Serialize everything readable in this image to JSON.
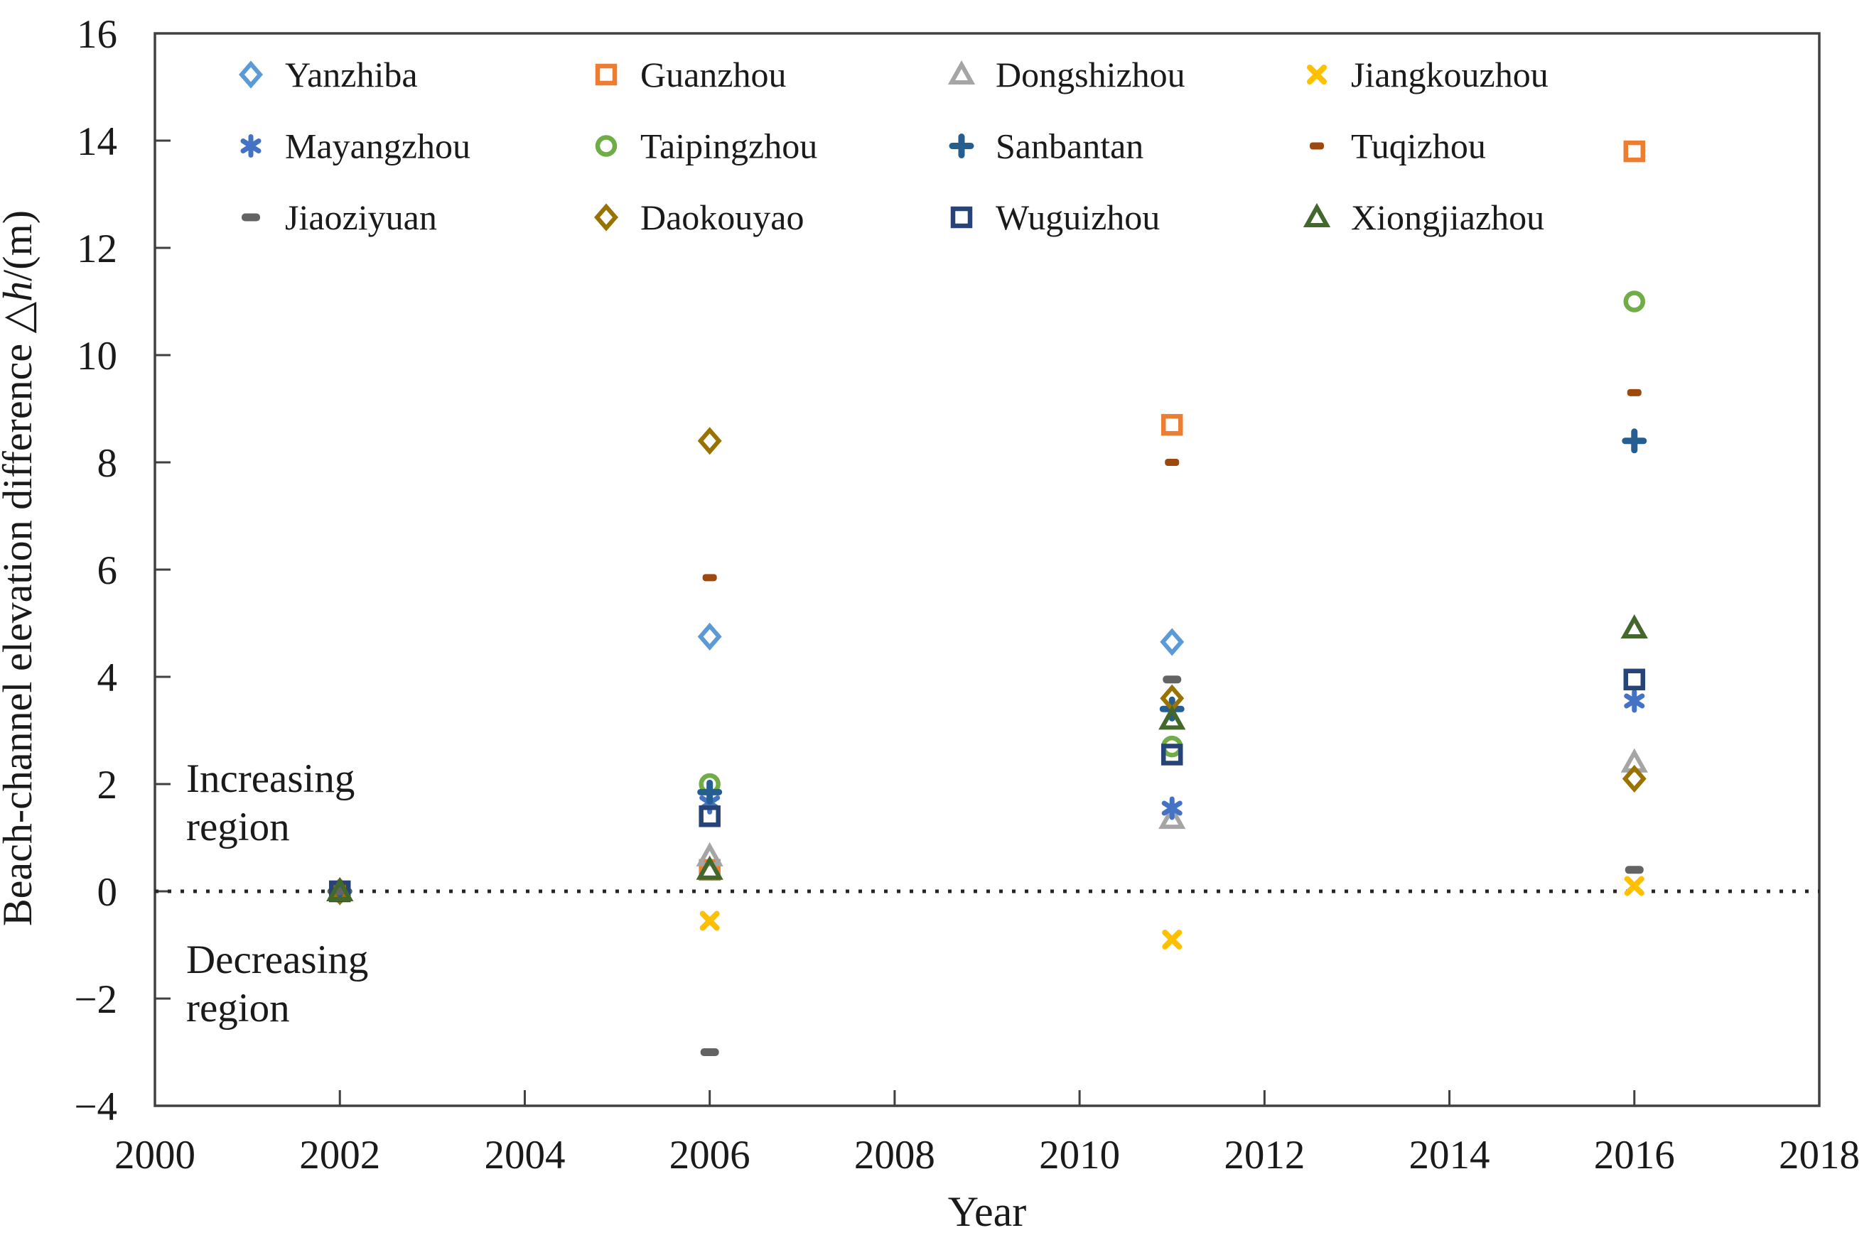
{
  "chart_data": {
    "type": "scatter",
    "title": "",
    "xlabel": "Year",
    "ylabel_parts": {
      "prefix": "Beach-channel elevation difference △",
      "italic": "h",
      "suffix": "/(m)"
    },
    "xlim": [
      2000,
      2018
    ],
    "ylim": [
      -4,
      16
    ],
    "grid": false,
    "zero_line": {
      "style": "dotted",
      "y": 0
    },
    "legend_position": "top-inside, 4 columns x 3 rows",
    "x_tick_labels": [
      "2000",
      "2002",
      "2004",
      "2006",
      "2008",
      "2010",
      "2012",
      "2014",
      "2016",
      "2018"
    ],
    "y_tick_labels": [
      "−4",
      "−2",
      "0",
      "2",
      "4",
      "6",
      "8",
      "10",
      "12",
      "14",
      "16"
    ],
    "x": [
      2002,
      2006,
      2011,
      2016
    ],
    "series": [
      {
        "name": "Yanzhiba",
        "marker": "diamond",
        "color": "#5B9BD5",
        "values": [
          0,
          4.75,
          4.65,
          null
        ]
      },
      {
        "name": "Guanzhou",
        "marker": "square",
        "color": "#ED7D31",
        "values": [
          0,
          0.4,
          8.7,
          13.8
        ]
      },
      {
        "name": "Dongshizhou",
        "marker": "triangle",
        "color": "#A5A5A5",
        "values": [
          0,
          0.65,
          1.35,
          2.4
        ]
      },
      {
        "name": "Jiangkouzhou",
        "marker": "x",
        "color": "#FFC000",
        "values": [
          0,
          -0.55,
          -0.9,
          0.1
        ]
      },
      {
        "name": "Mayangzhou",
        "marker": "asterisk",
        "color": "#4472C4",
        "values": [
          0,
          1.65,
          1.55,
          3.55
        ]
      },
      {
        "name": "Taipingzhou",
        "marker": "circle",
        "color": "#70AD47",
        "values": [
          0,
          2.0,
          2.7,
          11.0
        ]
      },
      {
        "name": "Sanbantan",
        "marker": "plus",
        "color": "#255E91",
        "values": [
          0,
          1.85,
          3.4,
          8.4
        ]
      },
      {
        "name": "Tuqizhou",
        "marker": "dash",
        "color": "#9E480E",
        "values": [
          0,
          5.85,
          8.0,
          9.3
        ]
      },
      {
        "name": "Jiaoziyuan",
        "marker": "longdash",
        "color": "#636363",
        "values": [
          0,
          -3.0,
          3.95,
          0.4
        ]
      },
      {
        "name": "Daokouyao",
        "marker": "diamond",
        "color": "#997300",
        "values": [
          0,
          8.4,
          3.6,
          2.1
        ]
      },
      {
        "name": "Wuguizhou",
        "marker": "square",
        "color": "#264478",
        "values": [
          0,
          1.4,
          2.55,
          3.95
        ]
      },
      {
        "name": "Xiongjiazhou",
        "marker": "triangle",
        "color": "#43682B",
        "values": [
          0,
          0.4,
          3.2,
          4.9
        ]
      }
    ],
    "annotations": [
      {
        "lines": [
          "Increasing",
          "region"
        ],
        "position": "left of plot, above zero line"
      },
      {
        "lines": [
          "Decreasing",
          "region"
        ],
        "position": "left of plot, below zero line"
      }
    ]
  },
  "frame_color": "#404040"
}
